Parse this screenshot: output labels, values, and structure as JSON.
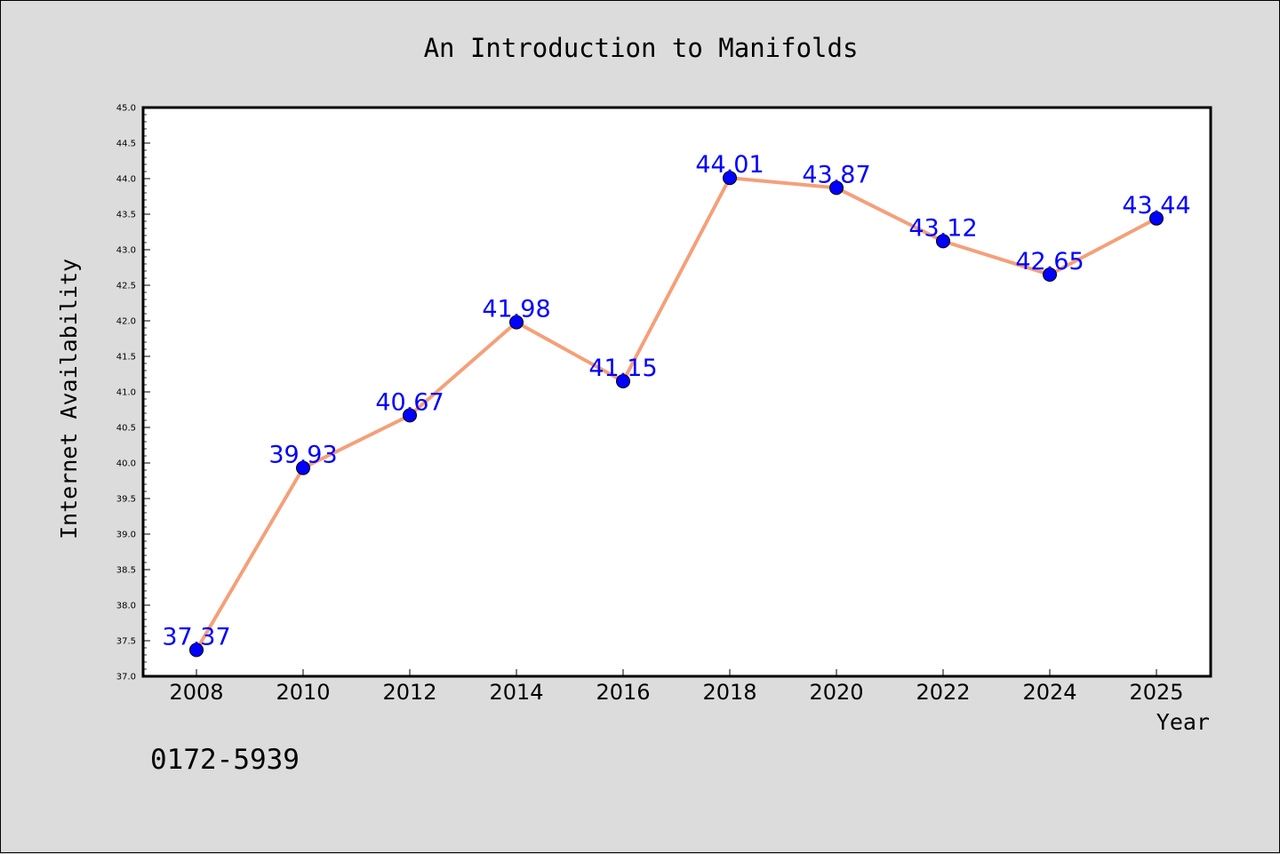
{
  "chart_data": {
    "type": "line",
    "title": "An Introduction to Manifolds",
    "xlabel": "Year",
    "ylabel": "Internet Availability",
    "categories": [
      "2008",
      "2010",
      "2012",
      "2014",
      "2016",
      "2018",
      "2020",
      "2022",
      "2024",
      "2025"
    ],
    "values": [
      37.37,
      39.93,
      40.67,
      41.98,
      41.15,
      44.01,
      43.87,
      43.12,
      42.65,
      43.44
    ],
    "data_labels": [
      "37.37",
      "39.93",
      "40.67",
      "41.98",
      "41.15",
      "44.01",
      "43.87",
      "43.12",
      "42.65",
      "43.44"
    ],
    "ylim": [
      37.0,
      45.0
    ],
    "yticks": [
      "37.0",
      "37.5",
      "38.0",
      "38.5",
      "39.0",
      "39.5",
      "40.0",
      "40.5",
      "41.0",
      "41.5",
      "42.0",
      "42.5",
      "43.0",
      "43.5",
      "44.0",
      "44.5",
      "45.0"
    ],
    "grid": false,
    "line_color": "#f4a07a",
    "marker_color": "#0000ff",
    "label_color": "#0000ff",
    "background_color": "#dcdcdc",
    "plot_background_color": "#ffffff"
  },
  "footer_text": "0172-5939"
}
